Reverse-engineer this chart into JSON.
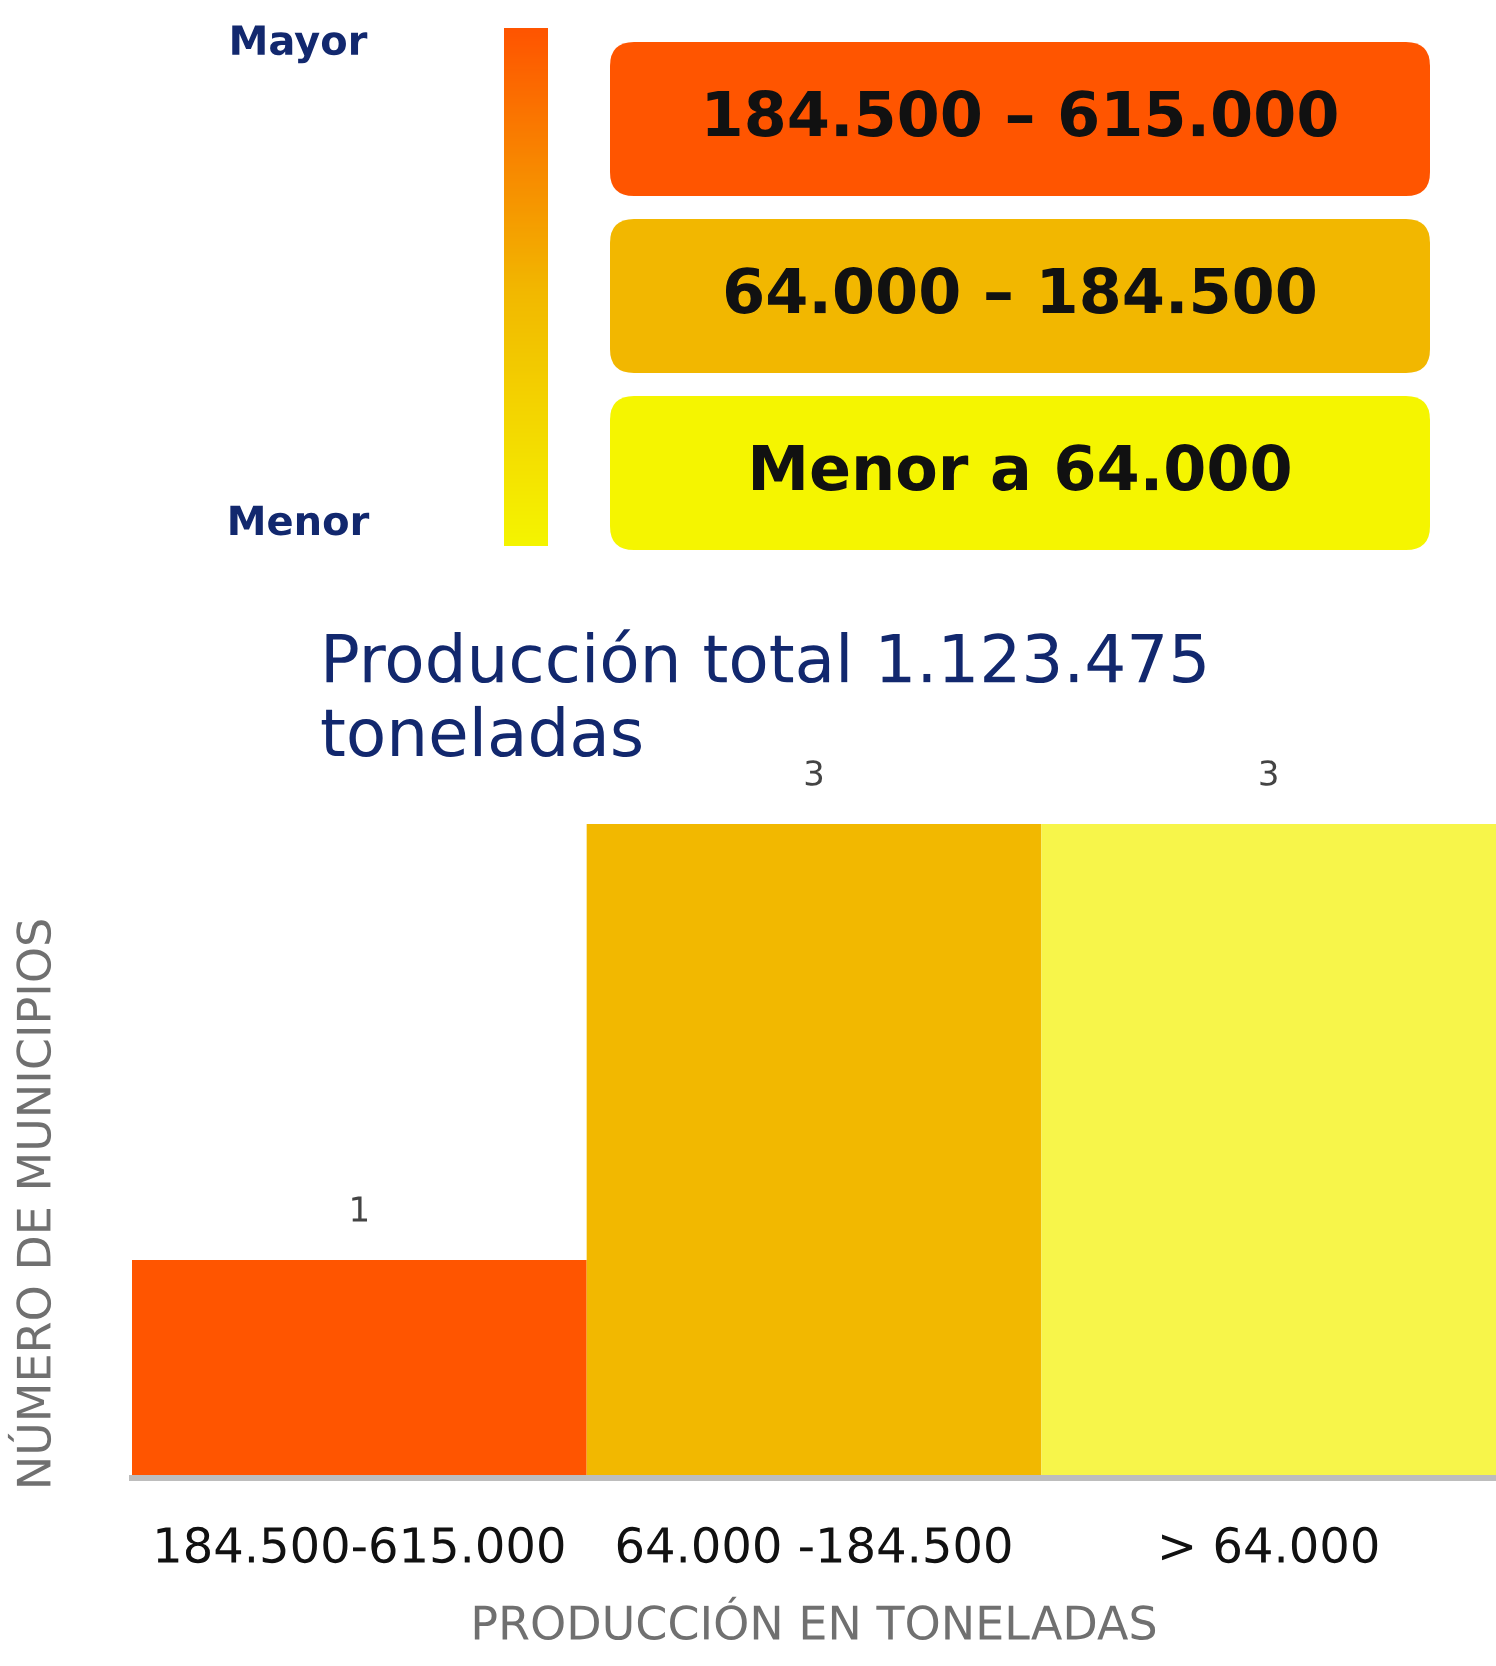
{
  "chart_data": [
    {
      "type": "other",
      "categories": [
        "184.500 – 615.000",
        "64.000 – 184.500",
        "Menor a 64.000"
      ],
      "colors": [
        "#ff5500",
        "#f2b700",
        "#f5f500"
      ],
      "annotations": [
        "Mayor",
        "Menor"
      ]
    },
    {
      "type": "bar",
      "title": "Producción total 1.123.475\ntoneladas",
      "xlabel": "PRODUCCIÓN EN TONELADAS",
      "ylabel": "NÚMERO DE MUNICIPIOS",
      "categories": [
        "184.500-615.000",
        "64.000 -184.500",
        "> 64.000"
      ],
      "values": [
        1,
        3,
        3
      ],
      "colors": [
        "#ff5500",
        "#f2b800",
        "#f7f54a"
      ],
      "data_labels": true,
      "tick_labels": "x"
    }
  ]
}
